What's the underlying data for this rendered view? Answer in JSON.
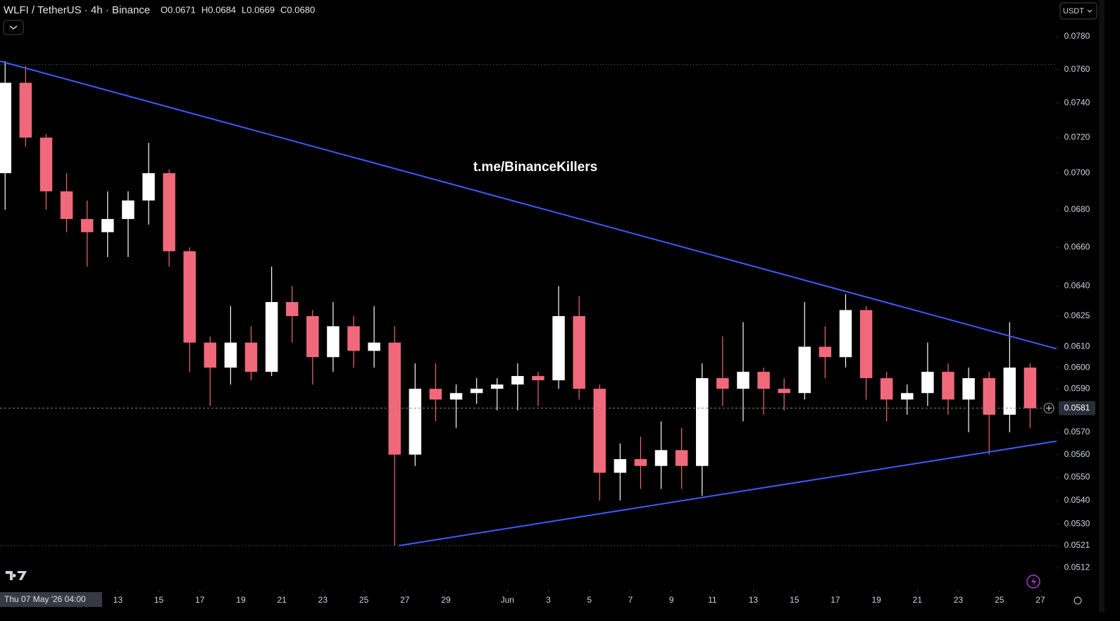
{
  "chart_data": {
    "type": "candlestick",
    "title": "WLFI / TetherUS · 4h · Binance",
    "ohlc_header": [
      "O0.0671",
      "H0.0684",
      "L0.0669",
      "C0.0680"
    ],
    "watermark": "t.me/BinanceKillers",
    "currency": "USDT",
    "crosshair_label": "Thu 07 May '26 04:00",
    "log_scale": true,
    "up_color": "#ffffff",
    "down_color": "#f0697b",
    "x": [
      "2026-05-07",
      "2026-05-08",
      "2026-05-09",
      "2026-05-10",
      "2026-05-11",
      "2026-05-12",
      "2026-05-13",
      "2026-05-14",
      "2026-05-15",
      "2026-05-16",
      "2026-05-17",
      "2026-05-18",
      "2026-05-19",
      "2026-05-20",
      "2026-05-21",
      "2026-05-22",
      "2026-05-23",
      "2026-05-24",
      "2026-05-25",
      "2026-05-26",
      "2026-05-27",
      "2026-05-28",
      "2026-05-29",
      "2026-05-30",
      "2026-05-31",
      "2026-06-01",
      "2026-06-02",
      "2026-06-03",
      "2026-06-04",
      "2026-06-05",
      "2026-06-06",
      "2026-06-07",
      "2026-06-08",
      "2026-06-09",
      "2026-06-10",
      "2026-06-11",
      "2026-06-12",
      "2026-06-13",
      "2026-06-14",
      "2026-06-15",
      "2026-06-16",
      "2026-06-17",
      "2026-06-18",
      "2026-06-19",
      "2026-06-20",
      "2026-06-21",
      "2026-06-22",
      "2026-06-23",
      "2026-06-24",
      "2026-06-25",
      "2026-06-26"
    ],
    "open": [
      0.07,
      0.0752,
      0.072,
      0.069,
      0.0675,
      0.0668,
      0.0675,
      0.0685,
      0.07,
      0.0658,
      0.0612,
      0.06,
      0.0612,
      0.0598,
      0.0632,
      0.0625,
      0.0605,
      0.062,
      0.0608,
      0.0612,
      0.056,
      0.059,
      0.0585,
      0.0588,
      0.059,
      0.0592,
      0.0596,
      0.0594,
      0.0625,
      0.059,
      0.0552,
      0.0558,
      0.0555,
      0.0562,
      0.0555,
      0.0595,
      0.059,
      0.0598,
      0.059,
      0.0588,
      0.061,
      0.0605,
      0.0628,
      0.0595,
      0.0585,
      0.0588,
      0.0598,
      0.0585,
      0.0595,
      0.0578,
      0.06
    ],
    "high": [
      0.0765,
      0.0762,
      0.0722,
      0.07,
      0.0685,
      0.069,
      0.069,
      0.0717,
      0.0702,
      0.066,
      0.0615,
      0.063,
      0.062,
      0.065,
      0.064,
      0.0628,
      0.0632,
      0.0625,
      0.063,
      0.062,
      0.0602,
      0.0602,
      0.0592,
      0.0595,
      0.0595,
      0.0602,
      0.0598,
      0.064,
      0.0635,
      0.0592,
      0.0565,
      0.0568,
      0.0575,
      0.0572,
      0.0602,
      0.0615,
      0.0622,
      0.06,
      0.0595,
      0.0632,
      0.062,
      0.0636,
      0.063,
      0.0598,
      0.0592,
      0.0612,
      0.0602,
      0.06,
      0.0598,
      0.0622,
      0.0602
    ],
    "low": [
      0.068,
      0.0715,
      0.068,
      0.0668,
      0.065,
      0.0655,
      0.0655,
      0.0672,
      0.065,
      0.0598,
      0.0582,
      0.0592,
      0.0594,
      0.0596,
      0.0612,
      0.0592,
      0.0598,
      0.06,
      0.06,
      0.0521,
      0.0555,
      0.0575,
      0.0572,
      0.0583,
      0.058,
      0.058,
      0.0582,
      0.059,
      0.0585,
      0.054,
      0.054,
      0.0545,
      0.0545,
      0.0545,
      0.0542,
      0.0582,
      0.0575,
      0.0578,
      0.058,
      0.0585,
      0.0595,
      0.06,
      0.0585,
      0.0575,
      0.0578,
      0.0582,
      0.0578,
      0.057,
      0.056,
      0.057,
      0.0572
    ],
    "close": [
      0.0752,
      0.072,
      0.069,
      0.0675,
      0.0668,
      0.0675,
      0.0685,
      0.07,
      0.0658,
      0.0612,
      0.06,
      0.0612,
      0.0598,
      0.0632,
      0.0625,
      0.0605,
      0.062,
      0.0608,
      0.0612,
      0.056,
      0.059,
      0.0585,
      0.0588,
      0.059,
      0.0592,
      0.0596,
      0.0594,
      0.0625,
      0.059,
      0.0552,
      0.0558,
      0.0555,
      0.0562,
      0.0555,
      0.0595,
      0.059,
      0.0598,
      0.059,
      0.0588,
      0.061,
      0.0605,
      0.0628,
      0.0595,
      0.0585,
      0.0588,
      0.0598,
      0.0585,
      0.0595,
      0.0578,
      0.06,
      0.0581
    ],
    "xlim": [
      "2026-05-07 06:00",
      "2026-06-27 19:00"
    ],
    "xticks": [
      {
        "value": "2026-05-13",
        "label": "13"
      },
      {
        "value": "2026-05-15",
        "label": "15"
      },
      {
        "value": "2026-05-17",
        "label": "17"
      },
      {
        "value": "2026-05-19",
        "label": "19"
      },
      {
        "value": "2026-05-21",
        "label": "21"
      },
      {
        "value": "2026-05-23",
        "label": "23"
      },
      {
        "value": "2026-05-25",
        "label": "25"
      },
      {
        "value": "2026-05-27",
        "label": "27"
      },
      {
        "value": "2026-05-29",
        "label": "29"
      },
      {
        "value": "2026-06-01",
        "label": "Jun"
      },
      {
        "value": "2026-06-03",
        "label": "3"
      },
      {
        "value": "2026-06-05",
        "label": "5"
      },
      {
        "value": "2026-06-07",
        "label": "7"
      },
      {
        "value": "2026-06-09",
        "label": "9"
      },
      {
        "value": "2026-06-11",
        "label": "11"
      },
      {
        "value": "2026-06-13",
        "label": "13"
      },
      {
        "value": "2026-06-15",
        "label": "15"
      },
      {
        "value": "2026-06-17",
        "label": "17"
      },
      {
        "value": "2026-06-19",
        "label": "19"
      },
      {
        "value": "2026-06-21",
        "label": "21"
      },
      {
        "value": "2026-06-23",
        "label": "23"
      },
      {
        "value": "2026-06-25",
        "label": "25"
      },
      {
        "value": "2026-06-27",
        "label": "27"
      }
    ],
    "ylim": [
      0.0503,
      0.0803
    ],
    "yticks": [
      {
        "value": 0.0512,
        "label": "0.0512"
      },
      {
        "value": 0.0521,
        "label": "0.0521"
      },
      {
        "value": 0.053,
        "label": "0.0530"
      },
      {
        "value": 0.054,
        "label": "0.0540"
      },
      {
        "value": 0.055,
        "label": "0.0550"
      },
      {
        "value": 0.056,
        "label": "0.0560"
      },
      {
        "value": 0.057,
        "label": "0.0570"
      },
      {
        "value": 0.059,
        "label": "0.0590"
      },
      {
        "value": 0.06,
        "label": "0.0600"
      },
      {
        "value": 0.061,
        "label": "0.0610"
      },
      {
        "value": 0.0625,
        "label": "0.0625"
      },
      {
        "value": 0.064,
        "label": "0.0640"
      },
      {
        "value": 0.066,
        "label": "0.0660"
      },
      {
        "value": 0.068,
        "label": "0.0680"
      },
      {
        "value": 0.07,
        "label": "0.0700"
      },
      {
        "value": 0.072,
        "label": "0.0720"
      },
      {
        "value": 0.074,
        "label": "0.0740"
      },
      {
        "value": 0.076,
        "label": "0.0760"
      },
      {
        "value": 0.078,
        "label": "0.0780"
      }
    ],
    "last_price": {
      "value": 0.0581,
      "label": "0.0581"
    },
    "price_lines": [
      0.0763,
      0.0521
    ],
    "trendlines": [
      {
        "color": "#3a5cff",
        "x": [
          "2026-05-07 06:00",
          "2026-06-27 19:00"
        ],
        "y": [
          0.0765,
          0.0609
        ]
      },
      {
        "color": "#3a5cff",
        "x": [
          "2026-05-26 17:00",
          "2026-06-27 19:00"
        ],
        "y": [
          0.0521,
          0.0566
        ]
      }
    ]
  }
}
